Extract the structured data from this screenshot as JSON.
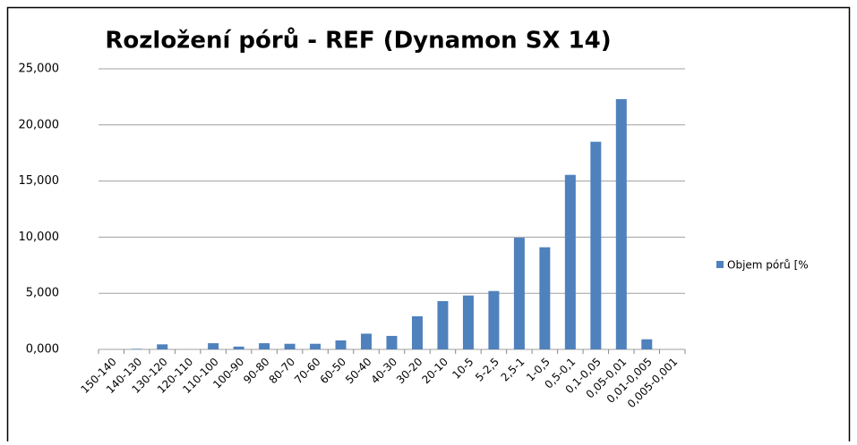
{
  "chart_data": {
    "type": "bar",
    "title": "Rozložení pórů - REF (Dynamon SX 14)",
    "categories": [
      "150-140",
      "140-130",
      "130-120",
      "120-110",
      "110-100",
      "100-90",
      "90-80",
      "80-70",
      "70-60",
      "60-50",
      "50-40",
      "40-30",
      "30-20",
      "20-10",
      "10-5",
      "5-2,5",
      "2,5-1",
      "1-0,5",
      "0,5-0,1",
      "0,1-0,05",
      "0,05-0,01",
      "0,01-0,005",
      "0,005-0,001"
    ],
    "series": [
      {
        "name": "Objem pórů [%",
        "color": "#4f81bd",
        "values": [
          0,
          0.05,
          0.45,
          0,
          0.55,
          0.25,
          0.55,
          0.5,
          0.5,
          0.8,
          1.4,
          1.2,
          2.95,
          4.3,
          4.8,
          5.2,
          9.95,
          9.1,
          15.55,
          18.5,
          22.3,
          0.9,
          0
        ]
      }
    ],
    "ylim": [
      0,
      25
    ],
    "yticks": [
      {
        "value": 0,
        "label": "0,000"
      },
      {
        "value": 5,
        "label": "5,000"
      },
      {
        "value": 10,
        "label": "10,000"
      },
      {
        "value": 15,
        "label": "15,000"
      },
      {
        "value": 20,
        "label": "20,000"
      },
      {
        "value": 25,
        "label": "25,000"
      }
    ],
    "grid": true,
    "legend": "right"
  }
}
